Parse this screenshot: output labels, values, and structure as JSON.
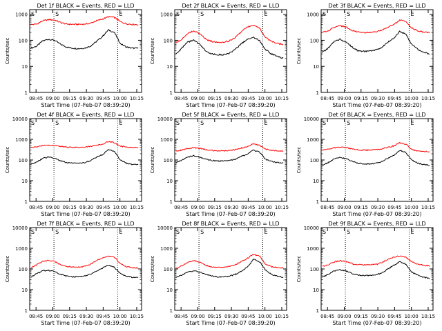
{
  "chart_data": [
    {
      "type": "line",
      "title": "Det 1f BLACK = Events, RED = LLD",
      "xlabel": "Start Time (07-Feb-07 08:39:20)",
      "ylabel": "Counts/sec",
      "series": [
        {
          "name": "Events",
          "color": "#000000",
          "values": [
            50,
            60,
            95,
            110,
            100,
            70,
            55,
            50,
            48,
            50,
            60,
            90,
            140,
            250,
            200,
            75,
            55,
            50,
            50
          ]
        },
        {
          "name": "LLD",
          "color": "#ff0000",
          "values": [
            400,
            420,
            560,
            620,
            600,
            480,
            420,
            410,
            410,
            420,
            450,
            560,
            650,
            800,
            760,
            520,
            430,
            410,
            400
          ]
        }
      ]
    },
    {
      "type": "line",
      "title": "Det 2f BLACK = Events, RED = LLD",
      "xlabel": "Start Time (07-Feb-07 08:39:20)",
      "ylabel": "Counts/sec",
      "series": [
        {
          "name": "Events",
          "color": "#000000",
          "values": [
            30,
            50,
            85,
            100,
            70,
            40,
            30,
            28,
            28,
            32,
            45,
            75,
            110,
            130,
            100,
            45,
            30,
            25,
            20
          ]
        },
        {
          "name": "LLD",
          "color": "#ff0000",
          "values": [
            80,
            110,
            190,
            230,
            180,
            110,
            90,
            85,
            85,
            95,
            130,
            220,
            320,
            380,
            300,
            130,
            90,
            75,
            70
          ]
        }
      ]
    },
    {
      "type": "line",
      "title": "Det 3f BLACK = Events, RED = LLD",
      "xlabel": "Start Time (07-Feb-07 08:39:20)",
      "ylabel": "Counts/sec",
      "series": [
        {
          "name": "Events",
          "color": "#000000",
          "values": [
            35,
            50,
            90,
            110,
            85,
            55,
            40,
            38,
            38,
            42,
            55,
            85,
            120,
            220,
            170,
            70,
            45,
            35,
            30
          ]
        },
        {
          "name": "LLD",
          "color": "#ff0000",
          "values": [
            200,
            230,
            320,
            360,
            320,
            240,
            210,
            200,
            200,
            210,
            240,
            320,
            400,
            600,
            520,
            300,
            230,
            210,
            200
          ]
        }
      ]
    },
    {
      "type": "line",
      "title": "Det 4f BLACK = Events, RED = LLD",
      "xlabel": "Start Time (07-Feb-07 08:39:20)",
      "ylabel": "Counts/sec",
      "series": [
        {
          "name": "Events",
          "color": "#000000",
          "values": [
            60,
            80,
            120,
            140,
            120,
            90,
            75,
            70,
            70,
            75,
            90,
            140,
            180,
            320,
            260,
            100,
            70,
            60,
            60
          ]
        },
        {
          "name": "LLD",
          "color": "#ff0000",
          "values": [
            400,
            430,
            490,
            520,
            500,
            450,
            420,
            410,
            410,
            420,
            450,
            510,
            580,
            780,
            700,
            470,
            420,
            410,
            400
          ]
        }
      ]
    },
    {
      "type": "line",
      "title": "Det 5f BLACK = Events, RED = LLD",
      "xlabel": "Start Time (07-Feb-07 08:39:20)",
      "ylabel": "Counts/sec",
      "series": [
        {
          "name": "Events",
          "color": "#000000",
          "values": [
            75,
            100,
            140,
            160,
            140,
            110,
            95,
            90,
            90,
            95,
            110,
            150,
            190,
            300,
            240,
            110,
            85,
            75,
            70
          ]
        },
        {
          "name": "LLD",
          "color": "#ff0000",
          "values": [
            270,
            300,
            360,
            390,
            370,
            320,
            290,
            280,
            280,
            290,
            320,
            380,
            440,
            600,
            520,
            340,
            290,
            280,
            270
          ]
        }
      ]
    },
    {
      "type": "line",
      "title": "Det 6f BLACK = Events, RED = LLD",
      "xlabel": "Start Time (07-Feb-07 08:39:20)",
      "ylabel": "Counts/sec",
      "series": [
        {
          "name": "Events",
          "color": "#000000",
          "values": [
            55,
            75,
            115,
            130,
            115,
            85,
            70,
            65,
            65,
            70,
            85,
            125,
            170,
            300,
            230,
            100,
            70,
            60,
            55
          ]
        },
        {
          "name": "LLD",
          "color": "#ff0000",
          "values": [
            300,
            330,
            390,
            420,
            400,
            340,
            310,
            300,
            300,
            310,
            340,
            410,
            480,
            680,
            580,
            330,
            270,
            260,
            250
          ]
        }
      ]
    },
    {
      "type": "line",
      "title": "Det 7f BLACK = Events, RED = LLD",
      "xlabel": "Start Time (07-Feb-07 08:39:20)",
      "ylabel": "Counts/sec",
      "series": [
        {
          "name": "Events",
          "color": "#000000",
          "values": [
            40,
            60,
            80,
            85,
            75,
            55,
            45,
            42,
            42,
            45,
            55,
            80,
            110,
            150,
            120,
            60,
            45,
            40,
            38
          ]
        },
        {
          "name": "LLD",
          "color": "#ff0000",
          "values": [
            110,
            160,
            240,
            260,
            230,
            160,
            130,
            125,
            125,
            135,
            170,
            250,
            350,
            430,
            370,
            180,
            130,
            115,
            110
          ]
        }
      ]
    },
    {
      "type": "line",
      "title": "Det 8f BLACK = Events, RED = LLD",
      "xlabel": "Start Time (07-Feb-07 08:39:20)",
      "ylabel": "Counts/sec",
      "series": [
        {
          "name": "Events",
          "color": "#000000",
          "values": [
            40,
            50,
            70,
            80,
            70,
            55,
            45,
            42,
            42,
            45,
            55,
            80,
            120,
            300,
            230,
            90,
            55,
            45,
            40
          ]
        },
        {
          "name": "LLD",
          "color": "#ff0000",
          "values": [
            110,
            140,
            210,
            250,
            210,
            150,
            125,
            120,
            120,
            130,
            160,
            230,
            330,
            500,
            420,
            180,
            130,
            115,
            110
          ]
        }
      ]
    },
    {
      "type": "line",
      "title": "Det 9f BLACK = Events, RED = LLD",
      "xlabel": "Start Time (07-Feb-07 08:39:20)",
      "ylabel": "Counts/sec",
      "series": [
        {
          "name": "Events",
          "color": "#000000",
          "values": [
            40,
            55,
            80,
            90,
            80,
            60,
            50,
            48,
            48,
            52,
            65,
            100,
            150,
            220,
            170,
            70,
            50,
            40,
            35
          ]
        },
        {
          "name": "LLD",
          "color": "#ff0000",
          "values": [
            130,
            160,
            220,
            250,
            230,
            180,
            160,
            155,
            155,
            165,
            200,
            290,
            380,
            420,
            380,
            220,
            170,
            150,
            140
          ]
        }
      ]
    }
  ],
  "axes": {
    "xticks": [
      "08:45",
      "09:00",
      "09:15",
      "09:30",
      "09:45",
      "10:00",
      "10:15"
    ],
    "yticks_top": [
      "1",
      "10",
      "100",
      "1000"
    ],
    "yticks_full": [
      "1",
      "10",
      "100",
      "1000",
      "10000"
    ],
    "ylim": [
      1,
      10000
    ],
    "ylim_top": [
      1,
      1500
    ]
  },
  "markers": {
    "start": "S",
    "end": "E"
  }
}
